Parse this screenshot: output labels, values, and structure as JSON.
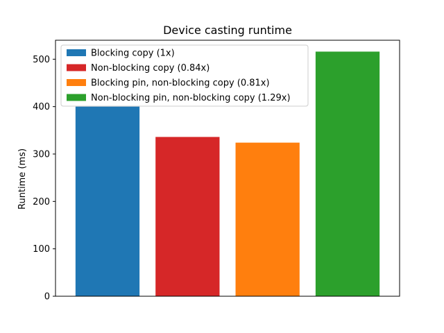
{
  "chart_data": {
    "type": "bar",
    "title": "Device casting runtime",
    "xlabel": "",
    "ylabel": "Runtime (ms)",
    "ylim": [
      0,
      540
    ],
    "yticks": [
      0,
      100,
      200,
      300,
      400,
      500
    ],
    "grid": false,
    "legend_position": "top-left",
    "categories": [
      "Blocking copy (1x)",
      "Non-blocking copy (0.84x)",
      "Blocking pin, non-blocking copy (0.81x)",
      "Non-blocking pin, non-blocking copy (1.29x)"
    ],
    "values": [
      400,
      336,
      324,
      516
    ],
    "colors": [
      "#1f77b4",
      "#d62728",
      "#ff7f0e",
      "#2ca02c"
    ]
  }
}
